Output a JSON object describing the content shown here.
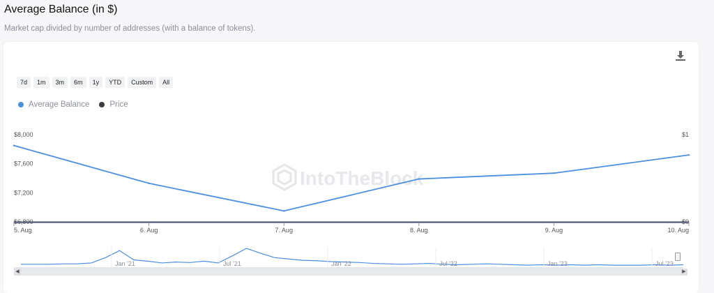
{
  "title": "Average Balance (in $)",
  "subtitle": "Market cap divided by number of addresses (with a balance of tokens).",
  "ranges": [
    "7d",
    "1m",
    "3m",
    "6m",
    "1y",
    "YTD",
    "Custom",
    "All"
  ],
  "watermark": "IntoTheBlock",
  "icons": {
    "download": "download-icon"
  },
  "colors": {
    "average_balance": "#4a8fe0",
    "price": "#3a3a3a",
    "axis_line": "#6b6fa0"
  },
  "chart_data": {
    "type": "line",
    "x": [
      "5. Aug",
      "6. Aug",
      "7. Aug",
      "8. Aug",
      "9. Aug",
      "10. Aug"
    ],
    "series": [
      {
        "name": "Average Balance",
        "values": [
          7850,
          7330,
          6950,
          7390,
          7470,
          7720
        ],
        "axis": "left"
      },
      {
        "name": "Price",
        "values": [
          0,
          0,
          0,
          0,
          0,
          0
        ],
        "axis": "right"
      }
    ],
    "y_left": {
      "ticks": [
        "$8,000",
        "$7,600",
        "$7,200",
        "$6,800"
      ],
      "tick_values": [
        8000,
        7600,
        7200,
        6800
      ],
      "range": [
        6800,
        8000
      ]
    },
    "y_right": {
      "ticks": [
        "$1",
        "$0"
      ],
      "tick_values": [
        1,
        0
      ],
      "range": [
        0,
        1
      ]
    },
    "grid": false,
    "legend": "top-left",
    "navigator": {
      "labels": [
        "Jan '21",
        "Jul '21",
        "Jan '22",
        "Jul '22",
        "Jan '23",
        "Jul '23"
      ],
      "values": [
        5,
        5,
        5,
        6,
        6,
        8,
        20,
        36,
        15,
        12,
        8,
        10,
        9,
        12,
        8,
        24,
        41,
        30,
        20,
        17,
        14,
        13,
        11,
        10,
        9,
        7,
        6,
        5,
        6,
        7,
        5,
        4,
        5,
        6,
        5,
        4,
        3,
        4,
        3,
        4,
        3,
        4,
        3,
        3,
        3,
        4,
        3,
        4
      ]
    }
  }
}
